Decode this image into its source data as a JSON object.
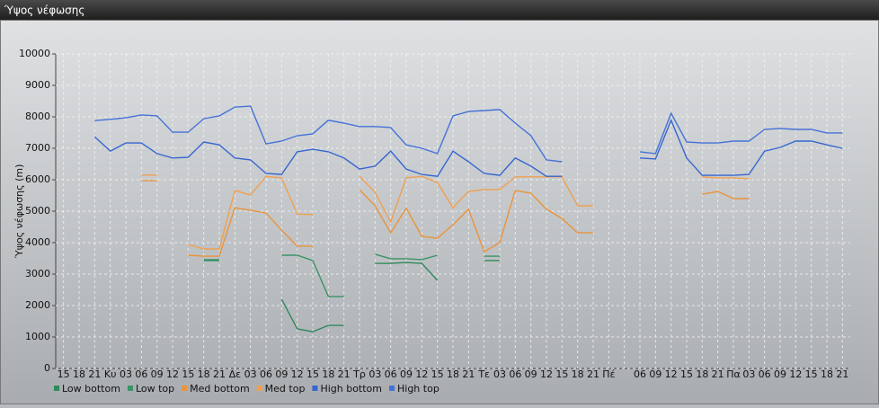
{
  "chart_data": {
    "type": "line",
    "title": "Ύψος νέφωσης",
    "y_label": "Ύψος νέφωσης (m)",
    "categories": [
      "15",
      "18",
      "21",
      "Κυ",
      "03",
      "06",
      "09",
      "12",
      "15",
      "18",
      "21",
      "Δε",
      "03",
      "06",
      "09",
      "12",
      "15",
      "18",
      "21",
      "Τρ",
      "03",
      "06",
      "09",
      "12",
      "15",
      "18",
      "21",
      "Τε",
      "03",
      "06",
      "09",
      "12",
      "15",
      "18",
      "21",
      "Πέ",
      null,
      "06",
      "09",
      "12",
      "15",
      "18",
      "21",
      "Πα",
      "03",
      "06",
      "09",
      "12",
      "15",
      "18",
      "21"
    ],
    "ylim": [
      0,
      10000
    ],
    "yticks": [
      0,
      1000,
      2000,
      3000,
      4000,
      5000,
      6000,
      7000,
      8000,
      9000,
      10000
    ],
    "grid": true,
    "legend": "bottom",
    "series": [
      {
        "name": "Low bottom",
        "color": "#2f8a5c",
        "values": [
          null,
          null,
          null,
          null,
          null,
          null,
          null,
          null,
          null,
          3430,
          3430,
          null,
          null,
          null,
          2200,
          1260,
          1170,
          1370,
          1370,
          null,
          3340,
          3340,
          3370,
          3340,
          2800,
          null,
          null,
          3430,
          3430,
          null,
          null,
          null,
          null,
          null,
          null,
          null,
          null,
          null,
          null,
          null,
          null,
          null,
          null,
          null,
          null,
          null,
          null,
          null,
          null,
          null,
          null
        ]
      },
      {
        "name": "Low top",
        "color": "#3a9466",
        "values": [
          null,
          null,
          null,
          null,
          null,
          null,
          null,
          null,
          null,
          3460,
          3460,
          null,
          null,
          null,
          3600,
          3600,
          3430,
          2290,
          2290,
          null,
          3630,
          3490,
          3490,
          3460,
          3600,
          null,
          null,
          3570,
          3570,
          null,
          null,
          null,
          null,
          null,
          null,
          null,
          null,
          null,
          null,
          null,
          null,
          null,
          null,
          null,
          null,
          null,
          null,
          null,
          null,
          null,
          null
        ]
      },
      {
        "name": "Med bottom",
        "color": "#e8943c",
        "values": [
          null,
          null,
          null,
          null,
          null,
          5970,
          5970,
          null,
          3600,
          3570,
          3570,
          5110,
          5030,
          4940,
          4400,
          3890,
          3890,
          null,
          null,
          5690,
          5170,
          4310,
          5090,
          4200,
          4140,
          4570,
          5060,
          3710,
          4000,
          5660,
          5570,
          5060,
          4770,
          4310,
          4310,
          null,
          null,
          null,
          null,
          null,
          null,
          5540,
          5630,
          5400,
          5400,
          null,
          null,
          null,
          null,
          null,
          null
        ]
      },
      {
        "name": "Med top",
        "color": "#f0a050",
        "values": [
          null,
          null,
          null,
          null,
          null,
          6150,
          6150,
          null,
          3940,
          3800,
          3800,
          5660,
          5510,
          6110,
          6060,
          4910,
          4890,
          null,
          null,
          6110,
          5600,
          4660,
          6060,
          6110,
          5910,
          5110,
          5630,
          5690,
          5690,
          6090,
          6090,
          6090,
          6090,
          5170,
          5170,
          null,
          null,
          null,
          null,
          null,
          null,
          6090,
          6060,
          6060,
          6030,
          null,
          null,
          null,
          null,
          null,
          null
        ]
      },
      {
        "name": "High bottom",
        "color": "#3566d0",
        "values": [
          null,
          null,
          7370,
          6910,
          7170,
          7170,
          6830,
          6690,
          6710,
          7200,
          7110,
          6690,
          6630,
          6200,
          6170,
          6890,
          6970,
          6890,
          6690,
          6340,
          6430,
          6910,
          6340,
          6170,
          6110,
          6910,
          6570,
          6200,
          6140,
          6690,
          6430,
          6110,
          6110,
          null,
          null,
          null,
          null,
          6690,
          6660,
          7890,
          6690,
          6140,
          6140,
          6140,
          6170,
          6910,
          7030,
          7230,
          7230,
          7110,
          7000
        ]
      },
      {
        "name": "High top",
        "color": "#4472d8",
        "values": [
          null,
          null,
          7880,
          7920,
          7970,
          8060,
          8030,
          7510,
          7510,
          7940,
          8030,
          8310,
          8340,
          7140,
          7230,
          7400,
          7460,
          7890,
          7800,
          7690,
          7690,
          7660,
          7110,
          7000,
          6830,
          8030,
          8170,
          8200,
          8230,
          7800,
          7400,
          6630,
          6570,
          null,
          null,
          null,
          null,
          6890,
          6830,
          8110,
          7200,
          7170,
          7170,
          7230,
          7230,
          7600,
          7630,
          7600,
          7600,
          7490,
          7490
        ]
      }
    ]
  }
}
